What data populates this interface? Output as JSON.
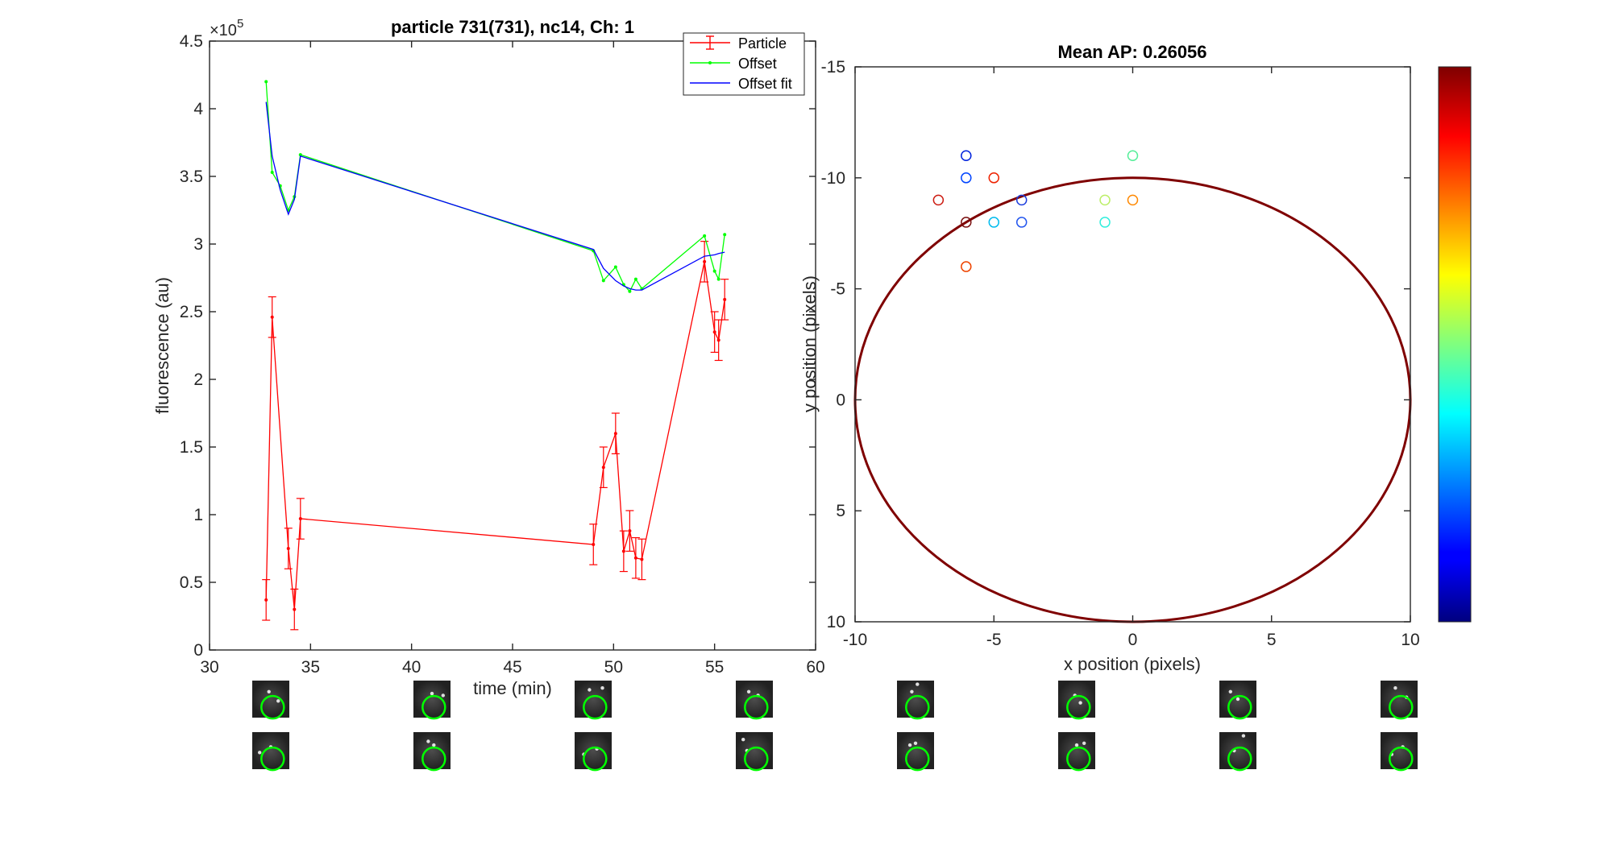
{
  "figure_title": "",
  "chart_data": [
    {
      "type": "line",
      "title": "particle 731(731), nc14, Ch: 1",
      "xlabel": "time (min)",
      "ylabel": "fluorescence (au)",
      "y_exponent_label": "×10",
      "y_exponent": "5",
      "xlim": [
        30,
        60
      ],
      "ylim": [
        0,
        450000
      ],
      "xticks": [
        30,
        35,
        40,
        45,
        50,
        55,
        60
      ],
      "xtick_labels": [
        "30",
        "35",
        "40",
        "45",
        "50",
        "55",
        "60"
      ],
      "yticks": [
        0,
        50000,
        100000,
        150000,
        200000,
        250000,
        300000,
        350000,
        400000,
        450000
      ],
      "ytick_labels": [
        "0",
        "0.5",
        "1",
        "1.5",
        "2",
        "2.5",
        "3",
        "3.5",
        "4",
        "4.5"
      ],
      "grid": false,
      "legend_position": "top-right",
      "series": [
        {
          "name": "Particle",
          "color": "#ff0000",
          "marker": "dot",
          "error_bars": true,
          "x": [
            32.8,
            33.1,
            33.9,
            34.2,
            34.5,
            49.0,
            49.5,
            50.1,
            50.5,
            50.8,
            51.1,
            51.4,
            54.5,
            55.0,
            55.2,
            55.5
          ],
          "y": [
            37000,
            246000,
            75000,
            30000,
            97000,
            78000,
            135000,
            160000,
            73000,
            88000,
            68000,
            67000,
            287000,
            235000,
            229000,
            259000
          ],
          "err": [
            15000,
            15000,
            15000,
            15000,
            15000,
            15000,
            15000,
            15000,
            15000,
            15000,
            15000,
            15000,
            15000,
            15000,
            15000,
            15000
          ]
        },
        {
          "name": "Offset",
          "color": "#00ff00",
          "marker": "dot",
          "x": [
            32.8,
            33.1,
            33.5,
            33.9,
            34.2,
            34.5,
            49.0,
            49.5,
            50.1,
            50.5,
            50.8,
            51.1,
            51.4,
            54.5,
            55.0,
            55.2,
            55.5
          ],
          "y": [
            420000,
            353000,
            343000,
            325000,
            335000,
            366000,
            295000,
            273000,
            283000,
            270000,
            265000,
            274000,
            267000,
            306000,
            280000,
            274000,
            307000
          ]
        },
        {
          "name": "Offset fit",
          "color": "#0000ff",
          "marker": "none",
          "x": [
            32.8,
            33.1,
            33.5,
            33.9,
            34.2,
            34.5,
            49.0,
            49.5,
            50.1,
            50.5,
            50.8,
            51.1,
            51.4,
            54.5,
            55.0,
            55.2,
            55.5
          ],
          "y": [
            405000,
            365000,
            340000,
            322000,
            333000,
            365000,
            296000,
            282000,
            273000,
            269000,
            267000,
            266000,
            266000,
            291000,
            292000,
            293000,
            294000
          ]
        }
      ]
    },
    {
      "type": "scatter",
      "title": "Mean AP: 0.26056",
      "xlabel": "x position (pixels)",
      "ylabel": "y position (pixels)",
      "xlim": [
        -10,
        10
      ],
      "ylim": [
        -15,
        10
      ],
      "y_reversed": true,
      "xticks": [
        -10,
        -5,
        0,
        5,
        10
      ],
      "xtick_labels": [
        "-10",
        "-5",
        "0",
        "5",
        "10"
      ],
      "yticks": [
        -15,
        -10,
        -5,
        0,
        5,
        10
      ],
      "ytick_labels": [
        "-15",
        "-10",
        "-5",
        "0",
        "5",
        "10"
      ],
      "grid": false,
      "colorbar": {
        "position": "right",
        "colormap": "jet"
      },
      "ellipse": {
        "center": [
          0,
          0
        ],
        "rx": 10,
        "ry": 10,
        "color": "#7f0000"
      },
      "points": [
        {
          "x": -6,
          "y": -11,
          "color": "#0022dd"
        },
        {
          "x": -6,
          "y": -10,
          "color": "#0044ff"
        },
        {
          "x": -5,
          "y": -10,
          "color": "#ee2200"
        },
        {
          "x": -7,
          "y": -9,
          "color": "#cc1a10"
        },
        {
          "x": -4,
          "y": -9,
          "color": "#1a3cdd"
        },
        {
          "x": -6,
          "y": -8,
          "color": "#7a1010"
        },
        {
          "x": -5,
          "y": -8,
          "color": "#00bbee"
        },
        {
          "x": -4,
          "y": -8,
          "color": "#2255ee"
        },
        {
          "x": -6,
          "y": -6,
          "color": "#ee4400"
        },
        {
          "x": 0,
          "y": -11,
          "color": "#55ee99"
        },
        {
          "x": -1,
          "y": -9,
          "color": "#bbee66"
        },
        {
          "x": 0,
          "y": -9,
          "color": "#ff8800"
        },
        {
          "x": -1,
          "y": -8,
          "color": "#33eedd"
        }
      ]
    }
  ],
  "thumbnails": {
    "rows": 2,
    "cols": 8,
    "overlay_color": "#00ff00"
  }
}
